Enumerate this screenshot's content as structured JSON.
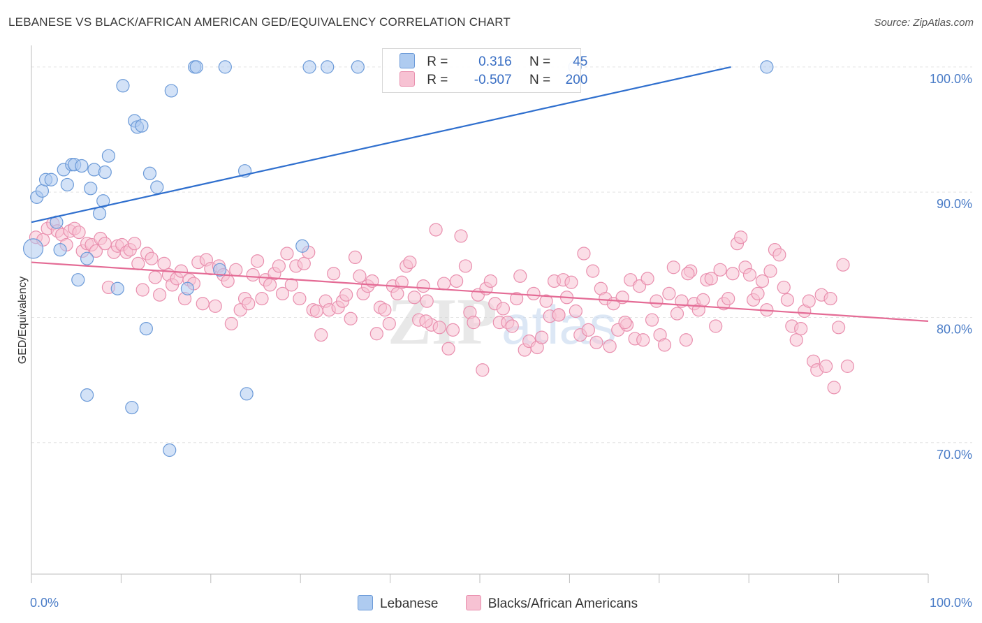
{
  "title": "LEBANESE VS BLACK/AFRICAN AMERICAN GED/EQUIVALENCY CORRELATION CHART",
  "source": "Source: ZipAtlas.com",
  "colors": {
    "blue_fill": "#aecbf0",
    "blue_stroke": "#6b9ad8",
    "blue_line": "#2f6fce",
    "pink_fill": "#f7c2d3",
    "pink_stroke": "#e98fae",
    "pink_line": "#e46b95",
    "tick_text": "#4a7cc7",
    "grid": "#e3e3e3"
  },
  "legend": {
    "rows": [
      {
        "r_label": "R =",
        "r_value": "0.316",
        "n_label": "N =",
        "n_value": "45"
      },
      {
        "r_label": "R =",
        "r_value": "-0.507",
        "n_label": "N =",
        "n_value": "200"
      }
    ]
  },
  "bottom_legend": [
    "Lebanese",
    "Blacks/African Americans"
  ],
  "chart_data": {
    "type": "scatter",
    "title": "LEBANESE VS BLACK/AFRICAN AMERICAN GED/EQUIVALENCY CORRELATION CHART",
    "xlabel": "",
    "ylabel": "GED/Equivalency",
    "xlim": [
      0,
      100
    ],
    "ylim": [
      59.5,
      101.5
    ],
    "x_tick_labels": [
      "0.0%",
      "100.0%"
    ],
    "y_ticks": [
      70,
      80,
      90,
      100
    ],
    "y_tick_labels": [
      "70.0%",
      "80.0%",
      "90.0%",
      "100.0%"
    ],
    "grid": true,
    "legend_position": "top-center",
    "series": [
      {
        "name": "Lebanese",
        "r": 0.316,
        "n": 45,
        "trend": {
          "x": [
            0,
            78
          ],
          "y": [
            87.6,
            100.0
          ]
        },
        "points": [
          [
            0.2,
            85.5
          ],
          [
            0.6,
            89.6
          ],
          [
            1.2,
            90.1
          ],
          [
            1.6,
            91.0
          ],
          [
            2.2,
            91.0
          ],
          [
            2.8,
            87.6
          ],
          [
            3.2,
            85.4
          ],
          [
            3.6,
            91.8
          ],
          [
            4.0,
            90.6
          ],
          [
            4.5,
            92.2
          ],
          [
            4.8,
            92.2
          ],
          [
            5.6,
            92.1
          ],
          [
            6.2,
            84.7
          ],
          [
            6.6,
            90.3
          ],
          [
            7.0,
            91.8
          ],
          [
            7.6,
            88.3
          ],
          [
            8.0,
            89.3
          ],
          [
            8.2,
            91.6
          ],
          [
            8.6,
            92.9
          ],
          [
            10.2,
            98.5
          ],
          [
            11.5,
            95.7
          ],
          [
            11.8,
            95.2
          ],
          [
            12.3,
            95.3
          ],
          [
            13.2,
            91.5
          ],
          [
            14.0,
            90.4
          ],
          [
            15.6,
            98.1
          ],
          [
            18.2,
            100.0
          ],
          [
            18.4,
            100.0
          ],
          [
            21.6,
            100.0
          ],
          [
            31.0,
            100.0
          ],
          [
            33.0,
            100.0
          ],
          [
            36.4,
            100.0
          ],
          [
            60.6,
            100.0
          ],
          [
            82.0,
            100.0
          ],
          [
            5.2,
            83.0
          ],
          [
            9.6,
            82.3
          ],
          [
            17.4,
            82.3
          ],
          [
            21.0,
            83.8
          ],
          [
            30.2,
            85.7
          ],
          [
            11.2,
            72.8
          ],
          [
            6.2,
            73.8
          ],
          [
            24.0,
            73.9
          ],
          [
            12.8,
            79.1
          ],
          [
            15.4,
            69.4
          ],
          [
            23.8,
            91.7
          ]
        ]
      },
      {
        "name": "Blacks/African Americans",
        "r": -0.507,
        "n": 200,
        "trend": {
          "x": [
            0,
            100
          ],
          "y": [
            84.4,
            79.7
          ]
        },
        "points": [
          [
            0.5,
            86.4
          ],
          [
            1.3,
            86.2
          ],
          [
            1.8,
            87.1
          ],
          [
            2.4,
            87.5
          ],
          [
            2.9,
            86.9
          ],
          [
            3.4,
            86.6
          ],
          [
            3.9,
            85.8
          ],
          [
            4.3,
            86.9
          ],
          [
            4.8,
            87.1
          ],
          [
            5.3,
            86.8
          ],
          [
            5.7,
            85.3
          ],
          [
            6.2,
            85.9
          ],
          [
            6.7,
            85.8
          ],
          [
            7.2,
            85.3
          ],
          [
            7.7,
            86.3
          ],
          [
            8.2,
            85.9
          ],
          [
            8.6,
            82.4
          ],
          [
            9.2,
            85.2
          ],
          [
            9.6,
            85.7
          ],
          [
            10.1,
            85.8
          ],
          [
            10.6,
            85.2
          ],
          [
            11.0,
            85.4
          ],
          [
            11.5,
            85.9
          ],
          [
            11.9,
            84.3
          ],
          [
            12.4,
            82.2
          ],
          [
            12.9,
            85.1
          ],
          [
            13.4,
            84.7
          ],
          [
            13.8,
            83.2
          ],
          [
            14.3,
            81.8
          ],
          [
            14.8,
            84.3
          ],
          [
            15.3,
            83.4
          ],
          [
            15.7,
            82.6
          ],
          [
            16.2,
            83.1
          ],
          [
            16.7,
            83.7
          ],
          [
            17.1,
            81.5
          ],
          [
            17.6,
            83.0
          ],
          [
            18.1,
            82.7
          ],
          [
            18.6,
            84.4
          ],
          [
            19.1,
            81.1
          ],
          [
            19.5,
            84.6
          ],
          [
            20.0,
            83.9
          ],
          [
            20.5,
            80.9
          ],
          [
            20.9,
            84.1
          ],
          [
            21.4,
            83.4
          ],
          [
            21.9,
            82.9
          ],
          [
            22.3,
            79.5
          ],
          [
            22.8,
            83.8
          ],
          [
            23.3,
            80.6
          ],
          [
            23.8,
            81.5
          ],
          [
            24.2,
            81.1
          ],
          [
            24.7,
            83.4
          ],
          [
            25.2,
            84.5
          ],
          [
            25.7,
            81.5
          ],
          [
            26.1,
            83.0
          ],
          [
            26.6,
            82.6
          ],
          [
            27.1,
            83.5
          ],
          [
            27.6,
            84.1
          ],
          [
            28.0,
            81.9
          ],
          [
            28.5,
            85.1
          ],
          [
            29.0,
            82.6
          ],
          [
            29.5,
            84.1
          ],
          [
            29.9,
            81.5
          ],
          [
            30.4,
            84.3
          ],
          [
            30.9,
            85.2
          ],
          [
            31.4,
            80.6
          ],
          [
            31.8,
            80.5
          ],
          [
            32.3,
            78.6
          ],
          [
            32.8,
            81.3
          ],
          [
            33.2,
            80.6
          ],
          [
            33.7,
            83.5
          ],
          [
            34.2,
            80.8
          ],
          [
            34.7,
            81.3
          ],
          [
            35.1,
            81.8
          ],
          [
            35.6,
            79.9
          ],
          [
            36.1,
            84.8
          ],
          [
            36.6,
            83.3
          ],
          [
            37.0,
            81.9
          ],
          [
            37.5,
            82.5
          ],
          [
            38.0,
            82.9
          ],
          [
            38.5,
            78.7
          ],
          [
            38.9,
            80.8
          ],
          [
            39.4,
            80.6
          ],
          [
            39.9,
            79.5
          ],
          [
            40.3,
            82.5
          ],
          [
            40.8,
            81.9
          ],
          [
            41.3,
            82.8
          ],
          [
            41.8,
            84.1
          ],
          [
            42.2,
            84.4
          ],
          [
            42.7,
            81.6
          ],
          [
            43.2,
            79.8
          ],
          [
            43.7,
            82.5
          ],
          [
            44.1,
            81.3
          ],
          [
            44.6,
            79.4
          ],
          [
            45.1,
            87.0
          ],
          [
            45.5,
            79.2
          ],
          [
            46.0,
            82.7
          ],
          [
            46.5,
            77.5
          ],
          [
            47.0,
            79.0
          ],
          [
            47.4,
            82.9
          ],
          [
            47.9,
            86.5
          ],
          [
            48.4,
            84.1
          ],
          [
            48.9,
            80.4
          ],
          [
            49.3,
            79.6
          ],
          [
            49.8,
            81.8
          ],
          [
            50.3,
            75.8
          ],
          [
            50.7,
            82.3
          ],
          [
            51.2,
            82.9
          ],
          [
            51.7,
            81.1
          ],
          [
            52.2,
            79.6
          ],
          [
            52.6,
            80.7
          ],
          [
            53.1,
            79.6
          ],
          [
            53.6,
            79.3
          ],
          [
            54.1,
            81.5
          ],
          [
            54.5,
            83.3
          ],
          [
            55.0,
            77.4
          ],
          [
            55.5,
            78.1
          ],
          [
            56.0,
            81.9
          ],
          [
            56.4,
            77.6
          ],
          [
            56.9,
            78.4
          ],
          [
            57.4,
            81.3
          ],
          [
            57.8,
            80.1
          ],
          [
            58.3,
            82.9
          ],
          [
            58.8,
            80.2
          ],
          [
            59.3,
            83.0
          ],
          [
            59.7,
            81.6
          ],
          [
            60.2,
            82.8
          ],
          [
            60.7,
            80.5
          ],
          [
            61.2,
            78.6
          ],
          [
            61.6,
            85.1
          ],
          [
            62.1,
            79.0
          ],
          [
            62.6,
            83.7
          ],
          [
            63.0,
            78.0
          ],
          [
            63.5,
            82.3
          ],
          [
            64.0,
            81.5
          ],
          [
            64.5,
            77.7
          ],
          [
            64.9,
            81.1
          ],
          [
            65.4,
            79.0
          ],
          [
            65.9,
            81.6
          ],
          [
            66.4,
            79.4
          ],
          [
            66.8,
            83.0
          ],
          [
            67.3,
            78.3
          ],
          [
            67.8,
            82.5
          ],
          [
            68.2,
            78.2
          ],
          [
            68.7,
            83.1
          ],
          [
            69.2,
            79.8
          ],
          [
            69.7,
            81.3
          ],
          [
            70.1,
            78.6
          ],
          [
            70.6,
            77.8
          ],
          [
            71.1,
            81.9
          ],
          [
            71.6,
            84.0
          ],
          [
            72.0,
            80.3
          ],
          [
            72.5,
            81.3
          ],
          [
            73.0,
            78.2
          ],
          [
            73.5,
            83.7
          ],
          [
            73.9,
            81.1
          ],
          [
            74.4,
            80.6
          ],
          [
            74.9,
            81.4
          ],
          [
            75.3,
            83.0
          ],
          [
            75.8,
            83.1
          ],
          [
            76.3,
            79.3
          ],
          [
            76.8,
            83.8
          ],
          [
            77.2,
            81.1
          ],
          [
            77.7,
            81.5
          ],
          [
            78.2,
            83.5
          ],
          [
            78.7,
            85.9
          ],
          [
            79.1,
            86.4
          ],
          [
            79.6,
            84.0
          ],
          [
            80.1,
            83.4
          ],
          [
            80.5,
            81.4
          ],
          [
            81.0,
            81.9
          ],
          [
            81.5,
            82.9
          ],
          [
            82.0,
            80.6
          ],
          [
            82.4,
            83.7
          ],
          [
            82.9,
            85.4
          ],
          [
            83.4,
            85.0
          ],
          [
            83.9,
            82.4
          ],
          [
            84.3,
            81.4
          ],
          [
            84.8,
            79.3
          ],
          [
            85.3,
            78.2
          ],
          [
            85.8,
            79.1
          ],
          [
            86.2,
            80.5
          ],
          [
            86.7,
            81.3
          ],
          [
            87.2,
            76.5
          ],
          [
            87.6,
            75.8
          ],
          [
            88.1,
            81.8
          ],
          [
            88.6,
            76.1
          ],
          [
            89.1,
            81.5
          ],
          [
            89.5,
            74.4
          ],
          [
            90.0,
            79.2
          ],
          [
            90.5,
            84.2
          ],
          [
            91.0,
            76.1
          ],
          [
            73.2,
            83.5
          ],
          [
            66.2,
            79.6
          ],
          [
            58.8,
            80.2
          ],
          [
            44.0,
            79.7
          ]
        ]
      }
    ]
  },
  "watermark": {
    "part1": "ZIP",
    "part2": "atlas"
  }
}
